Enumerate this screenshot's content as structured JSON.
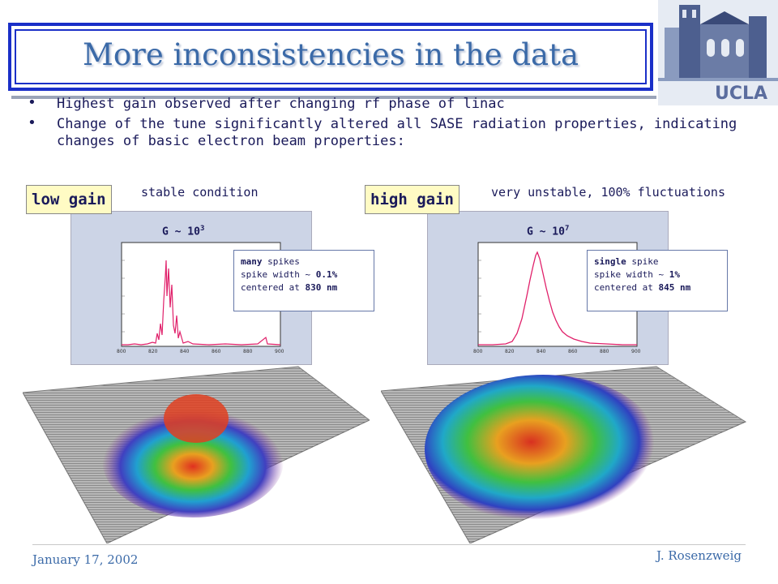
{
  "slide": {
    "title": "More inconsistencies in the data",
    "logo_text": "UCLA",
    "bullets": [
      "Highest gain observed after changing rf phase of linac",
      "Change of the tune significantly altered all SASE radiation properties, indicating changes of basic electron beam properties:"
    ],
    "left": {
      "tag": "low gain",
      "condition": "stable condition",
      "gain_base": "G ~ 10",
      "gain_exp": "3",
      "note": [
        {
          "bold": "many",
          "rest": " spikes"
        },
        {
          "bold": "",
          "rest": "spike width ~ ",
          "bold2": "0.1%"
        },
        {
          "bold": "",
          "rest": "centered at ",
          "bold2": "830 nm"
        }
      ]
    },
    "right": {
      "tag": "high gain",
      "condition": "very unstable, 100% fluctuations",
      "gain_base": "G ~ 10",
      "gain_exp": "7",
      "note": [
        {
          "bold": "single",
          "rest": " spike"
        },
        {
          "bold": "",
          "rest": "spike width ~ ",
          "bold2": "1%"
        },
        {
          "bold": "",
          "rest": "centered at ",
          "bold2": "845 nm"
        }
      ]
    },
    "x_ticks": [
      "800",
      "820",
      "840",
      "860",
      "880",
      "900"
    ],
    "footer_date": "January 17, 2002",
    "footer_author": "J. Rosenzweig"
  },
  "colors": {
    "title": "#3b6aa8",
    "frame": "#1a2fc8",
    "text": "#1a1a5a",
    "tag_bg": "#fffbc4",
    "spectrum": "#e0206a"
  }
}
